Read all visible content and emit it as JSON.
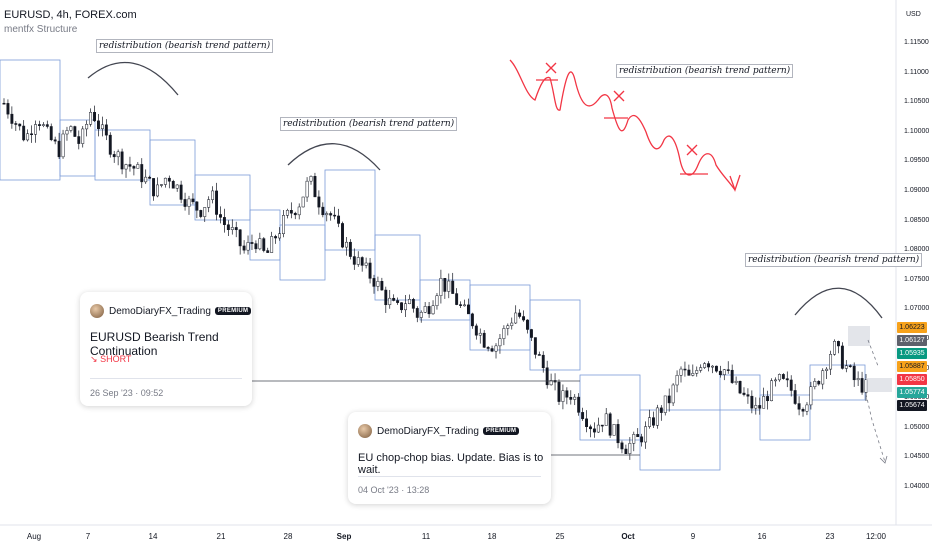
{
  "header": {
    "symbol_line": "EURUSD, 4h, FOREX.com",
    "indicator": "mentfx Structure"
  },
  "currency": "USD",
  "annotations": [
    "redistribution (bearish trend pattern)",
    "redistribution (bearish trend pattern)",
    "redistribution (bearish trend pattern)",
    "redistribution (bearish trend pattern)"
  ],
  "ideas": [
    {
      "author": "DemoDiaryFX_Trading",
      "badge": "PREMIUM",
      "title": "EURUSD Bearish Trend Continuation",
      "direction": "SHORT",
      "date": "26 Sep '23 · 09:52"
    },
    {
      "author": "DemoDiaryFX_Trading",
      "badge": "PREMIUM",
      "title": "EU chop-chop bias. Update. Bias is to wait.",
      "date": "04 Oct '23 · 13:28"
    }
  ],
  "price_scale": [
    "1.11500",
    "1.11000",
    "1.10500",
    "1.10000",
    "1.09500",
    "1.09000",
    "1.08500",
    "1.08000",
    "1.07500",
    "1.07000",
    "1.06500",
    "1.06000",
    "1.05500",
    "1.05000",
    "1.04500",
    "1.04000"
  ],
  "price_tags": [
    {
      "value": "1.06223",
      "color": "#f7a21b",
      "text_color": "#131722"
    },
    {
      "value": "1.06127",
      "color": "#5d606b",
      "text_color": "#ffffff"
    },
    {
      "value": "1.05935",
      "color": "#089981",
      "text_color": "#ffffff"
    },
    {
      "value": "1.05887",
      "color": "#f7a21b",
      "text_color": "#131722"
    },
    {
      "value": "1.05850",
      "color": "#f23645",
      "text_color": "#ffffff"
    },
    {
      "value": "1.05774",
      "color": "#26a69a",
      "text_color": "#ffffff"
    },
    {
      "value": "1.05674",
      "color": "#131722",
      "text_color": "#ffffff"
    }
  ],
  "time_axis": [
    "Aug",
    "7",
    "14",
    "21",
    "28",
    "Sep",
    "11",
    "18",
    "25",
    "Oct",
    "9",
    "16",
    "23",
    "12:00"
  ],
  "chart_data": {
    "type": "candlestick",
    "close_path": [
      1.105,
      1.102,
      1.099,
      1.103,
      1.0995,
      1.097,
      1.101,
      1.098,
      1.104,
      1.1,
      1.097,
      1.095,
      1.094,
      1.092,
      1.09,
      1.093,
      1.0905,
      1.088,
      1.087,
      1.0895,
      1.085,
      1.083,
      1.08,
      1.082,
      1.079,
      1.083,
      1.086,
      1.088,
      1.092,
      1.088,
      1.086,
      1.082,
      1.079,
      1.077,
      1.075,
      1.072,
      1.07,
      1.072,
      1.069,
      1.071,
      1.075,
      1.073,
      1.07,
      1.068,
      1.065,
      1.064,
      1.067,
      1.07,
      1.066,
      1.062,
      1.058,
      1.055,
      1.056,
      1.053,
      1.05,
      1.052,
      1.049,
      1.047,
      1.048,
      1.05,
      1.053,
      1.055,
      1.06,
      1.058,
      1.062,
      1.061,
      1.06,
      1.057,
      1.055,
      1.053,
      1.056,
      1.058,
      1.057,
      1.054,
      1.056,
      1.06,
      1.064,
      1.061,
      1.058,
      1.057
    ],
    "ylim": [
      1.038,
      1.12
    ]
  }
}
